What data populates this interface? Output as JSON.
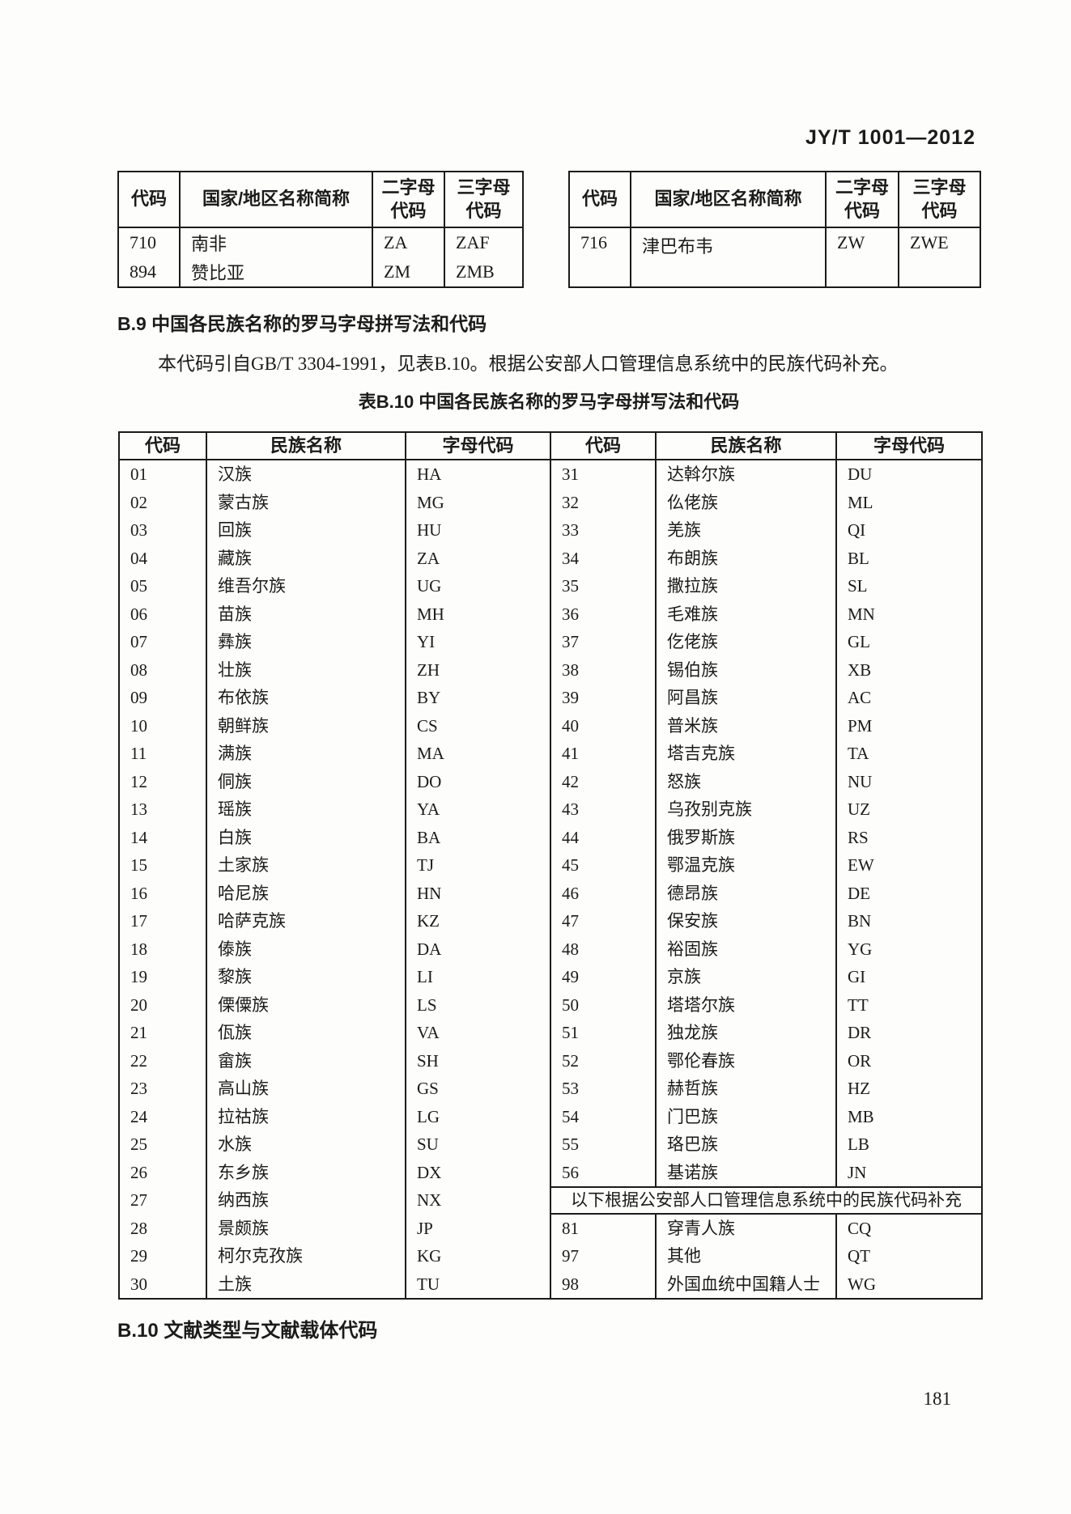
{
  "page": {
    "header": "JY/T 1001—2012",
    "page_number": "181"
  },
  "country_table": {
    "headers": {
      "code": "代码",
      "name": "国家/地区名称简称",
      "alpha2": "二字母\n代码",
      "alpha3": "三字母\n代码"
    },
    "left_rows": [
      [
        "710",
        "南非",
        "ZA",
        "ZAF"
      ],
      [
        "894",
        "赞比亚",
        "ZM",
        "ZMB"
      ]
    ],
    "right_rows": [
      [
        "716",
        "津巴布韦",
        "ZW",
        "ZWE"
      ]
    ]
  },
  "section_b9": {
    "heading": "B.9 中国各民族名称的罗马字母拼写法和代码",
    "paragraph": "本代码引自GB/T 3304-1991，见表B.10。根据公安部人口管理信息系统中的民族代码补充。"
  },
  "ethnic_table": {
    "title": "表B.10 中国各民族名称的罗马字母拼写法和代码",
    "headers": {
      "code": "代码",
      "name": "民族名称",
      "letter_code": "字母代码"
    },
    "left_rows": [
      [
        "01",
        "汉族",
        "HA"
      ],
      [
        "02",
        "蒙古族",
        "MG"
      ],
      [
        "03",
        "回族",
        "HU"
      ],
      [
        "04",
        "藏族",
        "ZA"
      ],
      [
        "05",
        "维吾尔族",
        "UG"
      ],
      [
        "06",
        "苗族",
        "MH"
      ],
      [
        "07",
        "彝族",
        "YI"
      ],
      [
        "08",
        "壮族",
        "ZH"
      ],
      [
        "09",
        "布依族",
        "BY"
      ],
      [
        "10",
        "朝鲜族",
        "CS"
      ],
      [
        "11",
        "满族",
        "MA"
      ],
      [
        "12",
        "侗族",
        "DO"
      ],
      [
        "13",
        "瑶族",
        "YA"
      ],
      [
        "14",
        "白族",
        "BA"
      ],
      [
        "15",
        "土家族",
        "TJ"
      ],
      [
        "16",
        "哈尼族",
        "HN"
      ],
      [
        "17",
        "哈萨克族",
        "KZ"
      ],
      [
        "18",
        "傣族",
        "DA"
      ],
      [
        "19",
        "黎族",
        "LI"
      ],
      [
        "20",
        "傈僳族",
        "LS"
      ],
      [
        "21",
        "佤族",
        "VA"
      ],
      [
        "22",
        "畲族",
        "SH"
      ],
      [
        "23",
        "高山族",
        "GS"
      ],
      [
        "24",
        "拉祜族",
        "LG"
      ],
      [
        "25",
        "水族",
        "SU"
      ],
      [
        "26",
        "东乡族",
        "DX"
      ],
      [
        "27",
        "纳西族",
        "NX"
      ],
      [
        "28",
        "景颇族",
        "JP"
      ],
      [
        "29",
        "柯尔克孜族",
        "KG"
      ],
      [
        "30",
        "土族",
        "TU"
      ]
    ],
    "right_rows": [
      [
        "31",
        "达斡尔族",
        "DU"
      ],
      [
        "32",
        "仫佬族",
        "ML"
      ],
      [
        "33",
        "羌族",
        "QI"
      ],
      [
        "34",
        "布朗族",
        "BL"
      ],
      [
        "35",
        "撒拉族",
        "SL"
      ],
      [
        "36",
        "毛难族",
        "MN"
      ],
      [
        "37",
        "仡佬族",
        "GL"
      ],
      [
        "38",
        "锡伯族",
        "XB"
      ],
      [
        "39",
        "阿昌族",
        "AC"
      ],
      [
        "40",
        "普米族",
        "PM"
      ],
      [
        "41",
        "塔吉克族",
        "TA"
      ],
      [
        "42",
        "怒族",
        "NU"
      ],
      [
        "43",
        "乌孜别克族",
        "UZ"
      ],
      [
        "44",
        "俄罗斯族",
        "RS"
      ],
      [
        "45",
        "鄂温克族",
        "EW"
      ],
      [
        "46",
        "德昂族",
        "DE"
      ],
      [
        "47",
        "保安族",
        "BN"
      ],
      [
        "48",
        "裕固族",
        "YG"
      ],
      [
        "49",
        "京族",
        "GI"
      ],
      [
        "50",
        "塔塔尔族",
        "TT"
      ],
      [
        "51",
        "独龙族",
        "DR"
      ],
      [
        "52",
        "鄂伦春族",
        "OR"
      ],
      [
        "53",
        "赫哲族",
        "HZ"
      ],
      [
        "54",
        "门巴族",
        "MB"
      ],
      [
        "55",
        "珞巴族",
        "LB"
      ],
      [
        "56",
        "基诺族",
        "JN"
      ]
    ],
    "supplement_note": "以下根据公安部人口管理信息系统中的民族代码补充",
    "supplement_rows": [
      [
        "81",
        "穿青人族",
        "CQ"
      ],
      [
        "97",
        "其他",
        "QT"
      ],
      [
        "98",
        "外国血统中国籍人士",
        "WG"
      ]
    ]
  },
  "section_b10": {
    "heading": "B.10 文献类型与文献载体代码"
  }
}
